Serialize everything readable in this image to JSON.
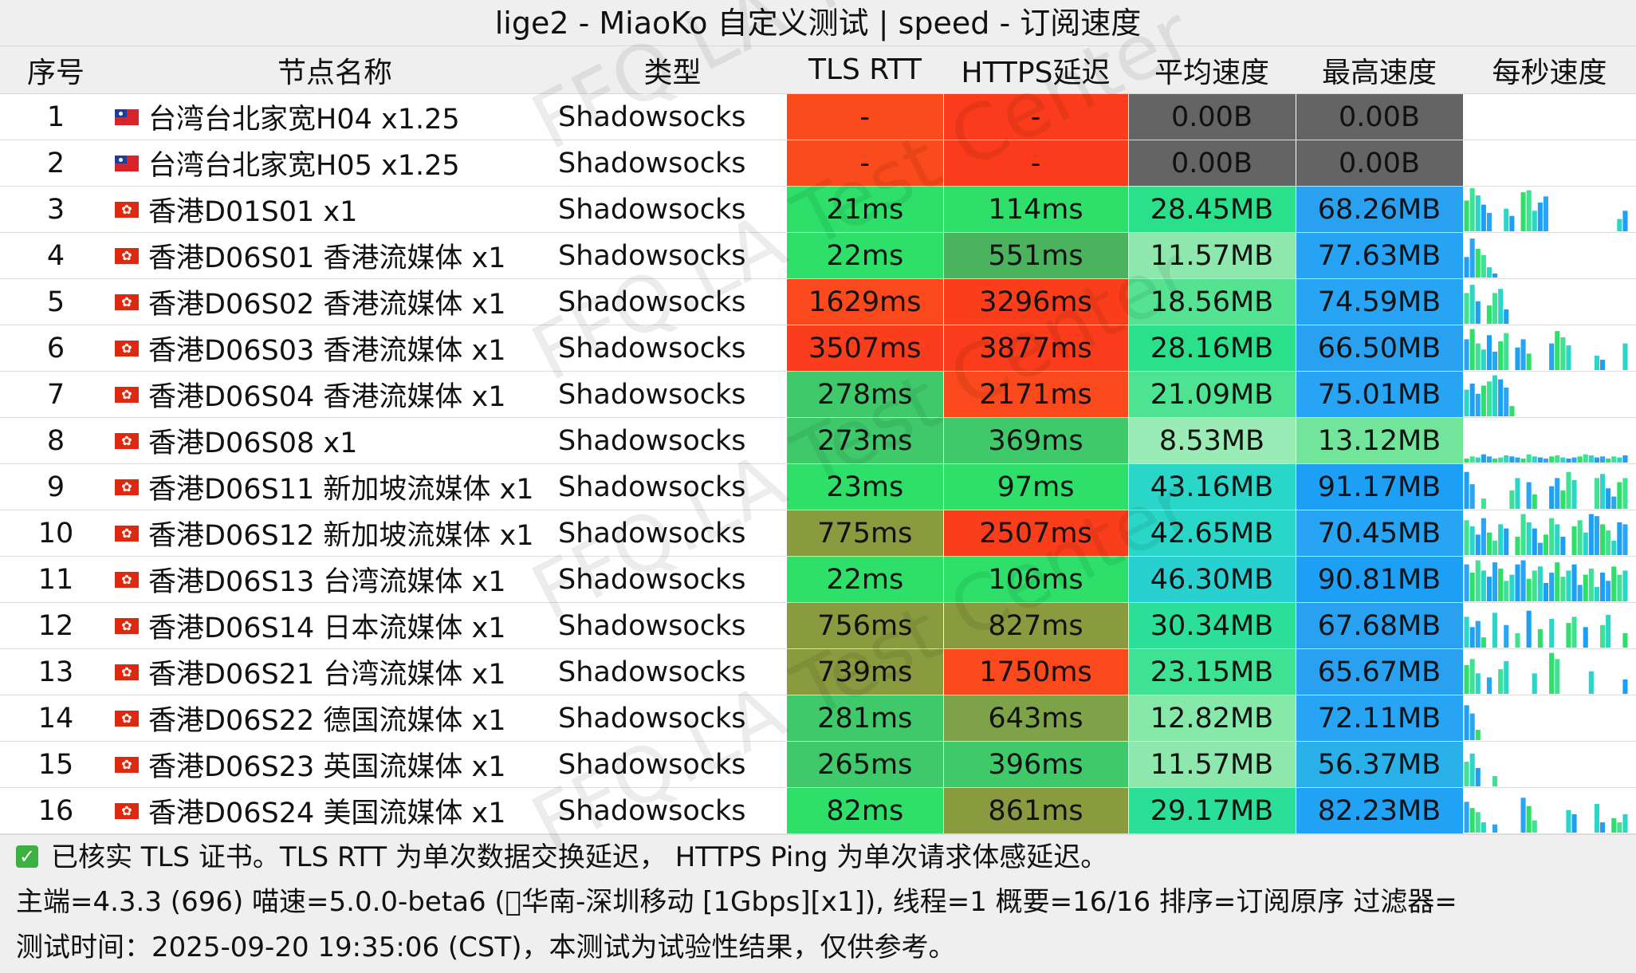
{
  "title": "lige2 - MiaoKo 自定义测试 | speed - 订阅速度",
  "columns": [
    "序号",
    "节点名称",
    "类型",
    "TLS RTT",
    "HTTPS延迟",
    "平均速度",
    "最高速度",
    "每秒速度"
  ],
  "colors": {
    "tls_fail": "#fa4b1c",
    "https_fail": "#fa3c1c",
    "speed_zero": "#646464",
    "fast_green": "#2ee06a",
    "mid_green": "#3fc16b",
    "olive": "#8a9a3e",
    "orange_red": "#fa4a1d",
    "speed_cyan": "#2bd3c3",
    "speed_blue": "#1aa4f5"
  },
  "rows": [
    {
      "idx": "1",
      "flag": "tw",
      "name": "台湾台北家宽H04 x1.25",
      "type": "Shadowsocks",
      "tls": "-",
      "tls_color": "#fa4b1c",
      "https": "-",
      "https_color": "#fa3c1c",
      "avg": "0.00B",
      "avg_color": "#646464",
      "max": "0.00B",
      "max_color": "#646464",
      "speeds": []
    },
    {
      "idx": "2",
      "flag": "tw",
      "name": "台湾台北家宽H05 x1.25",
      "type": "Shadowsocks",
      "tls": "-",
      "tls_color": "#fa4b1c",
      "https": "-",
      "https_color": "#fa3c1c",
      "avg": "0.00B",
      "avg_color": "#646464",
      "max": "0.00B",
      "max_color": "#646464",
      "speeds": []
    },
    {
      "idx": "3",
      "flag": "hk",
      "name": "香港D01S01 x1",
      "type": "Shadowsocks",
      "tls": "21ms",
      "tls_color": "#2ee06a",
      "https": "114ms",
      "https_color": "#2ee06a",
      "avg": "28.45MB",
      "avg_color": "#2ae08a",
      "max": "68.26MB",
      "max_color": "#2aa0f0",
      "speeds": [
        30,
        42,
        35,
        26,
        18,
        0,
        0,
        22,
        15,
        0,
        38,
        40,
        20,
        28,
        34,
        0,
        0,
        0,
        0,
        0,
        0,
        0,
        0,
        0,
        0,
        0,
        0,
        12,
        20
      ]
    },
    {
      "idx": "4",
      "flag": "hk",
      "name": "香港D06S01 香港流媒体 x1",
      "type": "Shadowsocks",
      "tls": "22ms",
      "tls_color": "#2ee06a",
      "https": "551ms",
      "https_color": "#4bb25e",
      "avg": "11.57MB",
      "avg_color": "#8ee8ad",
      "max": "77.63MB",
      "max_color": "#26a3f5",
      "speeds": [
        20,
        38,
        28,
        22,
        10,
        4
      ]
    },
    {
      "idx": "5",
      "flag": "hk",
      "name": "香港D06S02 香港流媒体 x1",
      "type": "Shadowsocks",
      "tls": "1629ms",
      "tls_color": "#fa4a1d",
      "https": "3296ms",
      "https_color": "#fa3e1c",
      "avg": "18.56MB",
      "avg_color": "#55e392",
      "max": "74.59MB",
      "max_color": "#27a4f3",
      "speeds": [
        30,
        38,
        22,
        0,
        18,
        30,
        34,
        14
      ]
    },
    {
      "idx": "6",
      "flag": "hk",
      "name": "香港D06S03 香港流媒体 x1",
      "type": "Shadowsocks",
      "tls": "3507ms",
      "tls_color": "#fa3d1c",
      "https": "3877ms",
      "https_color": "#fa3c1c",
      "avg": "28.16MB",
      "avg_color": "#2ae08a",
      "max": "66.50MB",
      "max_color": "#2aa0f0",
      "speeds": [
        30,
        40,
        26,
        20,
        34,
        18,
        28,
        36,
        0,
        22,
        30,
        16,
        0,
        0,
        0,
        26,
        38,
        32,
        24,
        0,
        0,
        0,
        0,
        14,
        10,
        0,
        0,
        0,
        26
      ]
    },
    {
      "idx": "7",
      "flag": "hk",
      "name": "香港D06S04 香港流媒体 x1",
      "type": "Shadowsocks",
      "tls": "278ms",
      "tls_color": "#3fc96a",
      "https": "2171ms",
      "https_color": "#fa4a1d",
      "avg": "21.09MB",
      "avg_color": "#4de392",
      "max": "75.01MB",
      "max_color": "#27a4f3",
      "speeds": [
        26,
        32,
        22,
        30,
        34,
        40,
        36,
        28,
        10
      ]
    },
    {
      "idx": "8",
      "flag": "hk",
      "name": "香港D06S08 x1",
      "type": "Shadowsocks",
      "tls": "273ms",
      "tls_color": "#3fc96a",
      "https": "369ms",
      "https_color": "#3fc96a",
      "avg": "8.53MB",
      "avg_color": "#9aebb6",
      "max": "13.12MB",
      "max_color": "#72e59a",
      "speeds": [
        4,
        6,
        5,
        8,
        6,
        4,
        5,
        7,
        6,
        5,
        4,
        8,
        6,
        5,
        4,
        6,
        7,
        5,
        4,
        5,
        6,
        8,
        7,
        5,
        6,
        4,
        6,
        5,
        7
      ]
    },
    {
      "idx": "9",
      "flag": "hk",
      "name": "香港D06S11 新加坡流媒体 x1",
      "type": "Shadowsocks",
      "tls": "23ms",
      "tls_color": "#2ee06a",
      "https": "97ms",
      "https_color": "#2ee06a",
      "avg": "43.16MB",
      "avg_color": "#2ad6c8",
      "max": "91.17MB",
      "max_color": "#1d9ff5",
      "speeds": [
        36,
        24,
        0,
        10,
        0,
        0,
        0,
        0,
        18,
        30,
        0,
        26,
        14,
        0,
        0,
        22,
        30,
        18,
        36,
        28,
        0,
        0,
        0,
        30,
        34,
        20,
        12,
        26,
        30
      ]
    },
    {
      "idx": "10",
      "flag": "hk",
      "name": "香港D06S12 新加坡流媒体 x1",
      "type": "Shadowsocks",
      "tls": "775ms",
      "tls_color": "#8a9a3e",
      "https": "2507ms",
      "https_color": "#fa3e1c",
      "avg": "42.65MB",
      "avg_color": "#2ad6c8",
      "max": "70.45MB",
      "max_color": "#27a4f3",
      "speeds": [
        34,
        28,
        20,
        36,
        22,
        14,
        30,
        26,
        0,
        18,
        40,
        32,
        26,
        12,
        20,
        36,
        30,
        18,
        0,
        28,
        34,
        22,
        40,
        38,
        30,
        24,
        14,
        32,
        30
      ]
    },
    {
      "idx": "11",
      "flag": "hk",
      "name": "香港D06S13 台湾流媒体 x1",
      "type": "Shadowsocks",
      "tls": "22ms",
      "tls_color": "#2ee06a",
      "https": "106ms",
      "https_color": "#2ee06a",
      "avg": "46.30MB",
      "avg_color": "#29d0d0",
      "max": "90.81MB",
      "max_color": "#1d9ff5",
      "speeds": [
        36,
        28,
        40,
        30,
        24,
        38,
        32,
        20,
        26,
        36,
        40,
        22,
        30,
        34,
        18,
        28,
        38,
        24,
        30,
        36,
        16,
        26,
        32,
        14,
        28,
        20,
        34,
        26,
        30
      ]
    },
    {
      "idx": "12",
      "flag": "hk",
      "name": "香港D06S14 日本流媒体 x1",
      "type": "Shadowsocks",
      "tls": "756ms",
      "tls_color": "#8a9a3e",
      "https": "827ms",
      "https_color": "#8a9a3e",
      "avg": "30.34MB",
      "avg_color": "#2bdf98",
      "max": "67.68MB",
      "max_color": "#2aa0f0",
      "speeds": [
        30,
        20,
        26,
        10,
        0,
        34,
        0,
        22,
        0,
        14,
        0,
        36,
        0,
        18,
        0,
        28,
        0,
        0,
        24,
        30,
        0,
        20,
        0,
        0,
        22,
        32,
        0,
        0,
        14
      ]
    },
    {
      "idx": "13",
      "flag": "hk",
      "name": "香港D06S21 台湾流媒体 x1",
      "type": "Shadowsocks",
      "tls": "739ms",
      "tls_color": "#8a9a3e",
      "https": "1750ms",
      "https_color": "#fa4a1d",
      "avg": "23.15MB",
      "avg_color": "#3fe292",
      "max": "65.67MB",
      "max_color": "#2aa0f0",
      "speeds": [
        28,
        34,
        20,
        0,
        16,
        0,
        24,
        32,
        0,
        0,
        0,
        0,
        20,
        0,
        0,
        40,
        34,
        0,
        0,
        0,
        0,
        0,
        22,
        0,
        0,
        0,
        0,
        0,
        14
      ]
    },
    {
      "idx": "14",
      "flag": "hk",
      "name": "香港D06S22 德国流媒体 x1",
      "type": "Shadowsocks",
      "tls": "281ms",
      "tls_color": "#3fc96a",
      "https": "643ms",
      "https_color": "#7da247",
      "avg": "12.82MB",
      "avg_color": "#86e8a9",
      "max": "72.11MB",
      "max_color": "#27a4f3",
      "speeds": [
        34,
        26,
        10,
        0,
        0,
        0,
        0,
        0,
        0,
        0,
        0,
        0,
        0,
        0,
        0,
        0,
        0,
        0,
        0,
        0,
        0,
        0,
        0,
        0,
        0,
        0,
        0,
        0,
        0
      ]
    },
    {
      "idx": "15",
      "flag": "hk",
      "name": "香港D06S23 英国流媒体 x1",
      "type": "Shadowsocks",
      "tls": "265ms",
      "tls_color": "#3fc96a",
      "https": "396ms",
      "https_color": "#3fc96a",
      "avg": "11.57MB",
      "avg_color": "#8ee8ad",
      "max": "56.37MB",
      "max_color": "#2ab0e8",
      "speeds": [
        24,
        32,
        18,
        0,
        0,
        10,
        0,
        0,
        0,
        0,
        0,
        0,
        0,
        0,
        0,
        0,
        0,
        0,
        0,
        0,
        0,
        0,
        0,
        0,
        0,
        0,
        0,
        0,
        0
      ]
    },
    {
      "idx": "16",
      "flag": "hk",
      "name": "香港D06S24 美国流媒体 x1",
      "type": "Shadowsocks",
      "tls": "82ms",
      "tls_color": "#2ee06a",
      "https": "861ms",
      "https_color": "#8a9a3e",
      "avg": "29.17MB",
      "avg_color": "#2bdf98",
      "max": "82.23MB",
      "max_color": "#22a2f5",
      "speeds": [
        30,
        24,
        20,
        10,
        0,
        8,
        0,
        0,
        0,
        0,
        34,
        26,
        12,
        0,
        0,
        0,
        0,
        0,
        22,
        18,
        0,
        0,
        0,
        28,
        10,
        0,
        14,
        10,
        18
      ]
    }
  ],
  "footer": {
    "line1": "已核实 TLS 证书。TLS RTT 为单次数据交换延迟， HTTPS Ping 为单次请求体感延迟。",
    "line2": "主端=4.3.3 (696) 喵速=5.0.0-beta6 (⃝华南-深圳移动 [1Gbps][x1]), 线程=1 概要=16/16 排序=订阅原序 过滤器=",
    "line3": "测试时间：2025-09-20 19:35:06 (CST)，本测试为试验性结果，仅供参考。"
  },
  "watermark": "FFQ.LA Test Center"
}
